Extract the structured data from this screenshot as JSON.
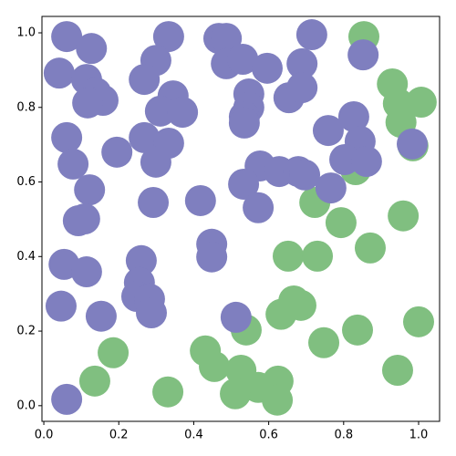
{
  "chart_data": {
    "type": "scatter",
    "xlim": [
      -0.005,
      1.056
    ],
    "ylim": [
      -0.042,
      1.044
    ],
    "xticks": [
      {
        "value": 0,
        "label": "0.0"
      },
      0.2,
      0.4,
      0.6,
      0.8,
      {
        "value": 1,
        "label": "1.0"
      }
    ],
    "yticks": [
      {
        "value": 0,
        "label": "0.0"
      },
      0.2,
      0.4,
      0.6,
      0.8,
      {
        "value": 1,
        "label": "1.0"
      }
    ],
    "grid": false,
    "series": [
      {
        "color": "#80bf80",
        "x": [
          0.854,
          0.93,
          1.007,
          0.946,
          0.953,
          0.985,
          0.723,
          0.793,
          0.959,
          0.871,
          0.652,
          0.73,
          0.667,
          0.686,
          0.633,
          0.54,
          0.837,
          1.0,
          0.747,
          0.185,
          0.431,
          0.455,
          0.526,
          0.625,
          0.572,
          0.511,
          0.623,
          0.136,
          0.331,
          0.944,
          0.832
        ],
        "y": [
          0.99,
          0.863,
          0.814,
          0.81,
          0.76,
          0.697,
          0.545,
          0.491,
          0.509,
          0.423,
          0.401,
          0.401,
          0.281,
          0.269,
          0.245,
          0.203,
          0.203,
          0.225,
          0.169,
          0.142,
          0.147,
          0.105,
          0.095,
          0.066,
          0.049,
          0.032,
          0.015,
          0.066,
          0.037,
          0.095,
          0.633
        ]
      },
      {
        "color": "#7f7fbf",
        "x": [
          0.061,
          0.127,
          0.333,
          0.715,
          0.467,
          0.487,
          0.487,
          0.531,
          0.596,
          0.299,
          0.689,
          0.852,
          0.041,
          0.114,
          0.268,
          0.139,
          0.158,
          0.117,
          0.345,
          0.547,
          0.547,
          0.654,
          0.689,
          0.827,
          0.311,
          0.37,
          0.535,
          0.535,
          0.061,
          0.268,
          0.333,
          0.759,
          0.844,
          0.983,
          0.078,
          0.195,
          0.299,
          0.803,
          0.861,
          0.577,
          0.628,
          0.679,
          0.696,
          0.766,
          0.533,
          0.572,
          0.122,
          0.418,
          0.292,
          0.092,
          0.109,
          0.448,
          0.448,
          0.26,
          0.054,
          0.114,
          0.255,
          0.248,
          0.282,
          0.287,
          0.046,
          0.153,
          0.513,
          0.061
        ],
        "y": [
          0.99,
          0.958,
          0.99,
          0.995,
          0.985,
          0.985,
          0.917,
          0.929,
          0.905,
          0.926,
          0.917,
          0.941,
          0.892,
          0.875,
          0.875,
          0.839,
          0.819,
          0.812,
          0.831,
          0.836,
          0.8,
          0.826,
          0.853,
          0.775,
          0.79,
          0.787,
          0.775,
          0.758,
          0.719,
          0.719,
          0.704,
          0.738,
          0.709,
          0.702,
          0.648,
          0.68,
          0.653,
          0.66,
          0.655,
          0.643,
          0.628,
          0.628,
          0.619,
          0.584,
          0.594,
          0.531,
          0.579,
          0.55,
          0.545,
          0.496,
          0.501,
          0.433,
          0.399,
          0.389,
          0.379,
          0.359,
          0.33,
          0.293,
          0.286,
          0.249,
          0.267,
          0.24,
          0.237,
          0.017
        ]
      }
    ]
  }
}
